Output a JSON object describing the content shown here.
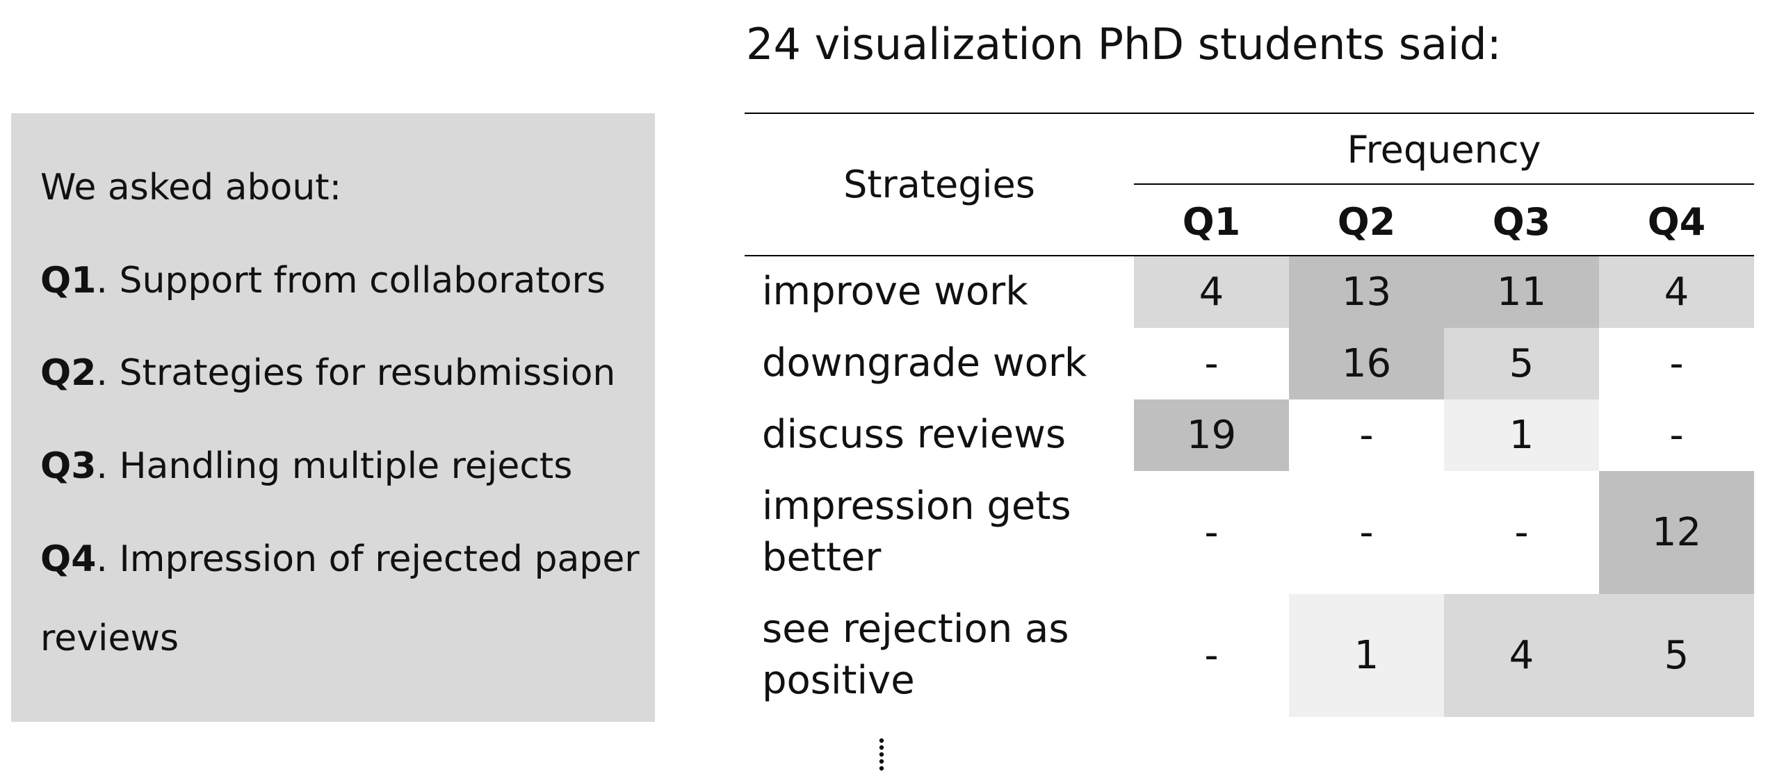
{
  "title": "24 visualization PhD students said:",
  "left_panel": {
    "heading": "We asked about:",
    "questions": [
      {
        "id": "Q1",
        "text": "Support from collaborators"
      },
      {
        "id": "Q2",
        "text": "Strategies for resubmission"
      },
      {
        "id": "Q3",
        "text": "Handling multiple rejects"
      },
      {
        "id": "Q4",
        "text": "Impression of rejected paper",
        "text_cont": "reviews"
      }
    ]
  },
  "chart_data": {
    "type": "table",
    "title": "24 visualization PhD students said:",
    "row_header": "Strategies",
    "group_header": "Frequency",
    "columns": [
      "Q1",
      "Q2",
      "Q3",
      "Q4"
    ],
    "rows": [
      {
        "label": "improve work",
        "values": [
          "4",
          "13",
          "11",
          "4"
        ]
      },
      {
        "label": "downgrade work",
        "values": [
          "-",
          "16",
          "5",
          "-"
        ]
      },
      {
        "label": "discuss reviews",
        "values": [
          "19",
          "-",
          "1",
          "-"
        ]
      },
      {
        "label": "impression gets better",
        "values": [
          "-",
          "-",
          "-",
          "12"
        ]
      },
      {
        "label": "see rejection as positive",
        "values": [
          "-",
          "1",
          "4",
          "5"
        ]
      }
    ],
    "continuation": "⋮",
    "shading": "grayscale by frequency (darker = higher)"
  },
  "colors": {
    "panel_bg": "#d9d9d9",
    "cell_shades": {
      "1": "#f0f0f0",
      "4": "#d9d9d9",
      "5": "#d9d9d9",
      "11": "#bfbfbf",
      "12": "#bfbfbf",
      "13": "#bfbfbf",
      "16": "#bfbfbf",
      "19": "#bfbfbf"
    }
  }
}
